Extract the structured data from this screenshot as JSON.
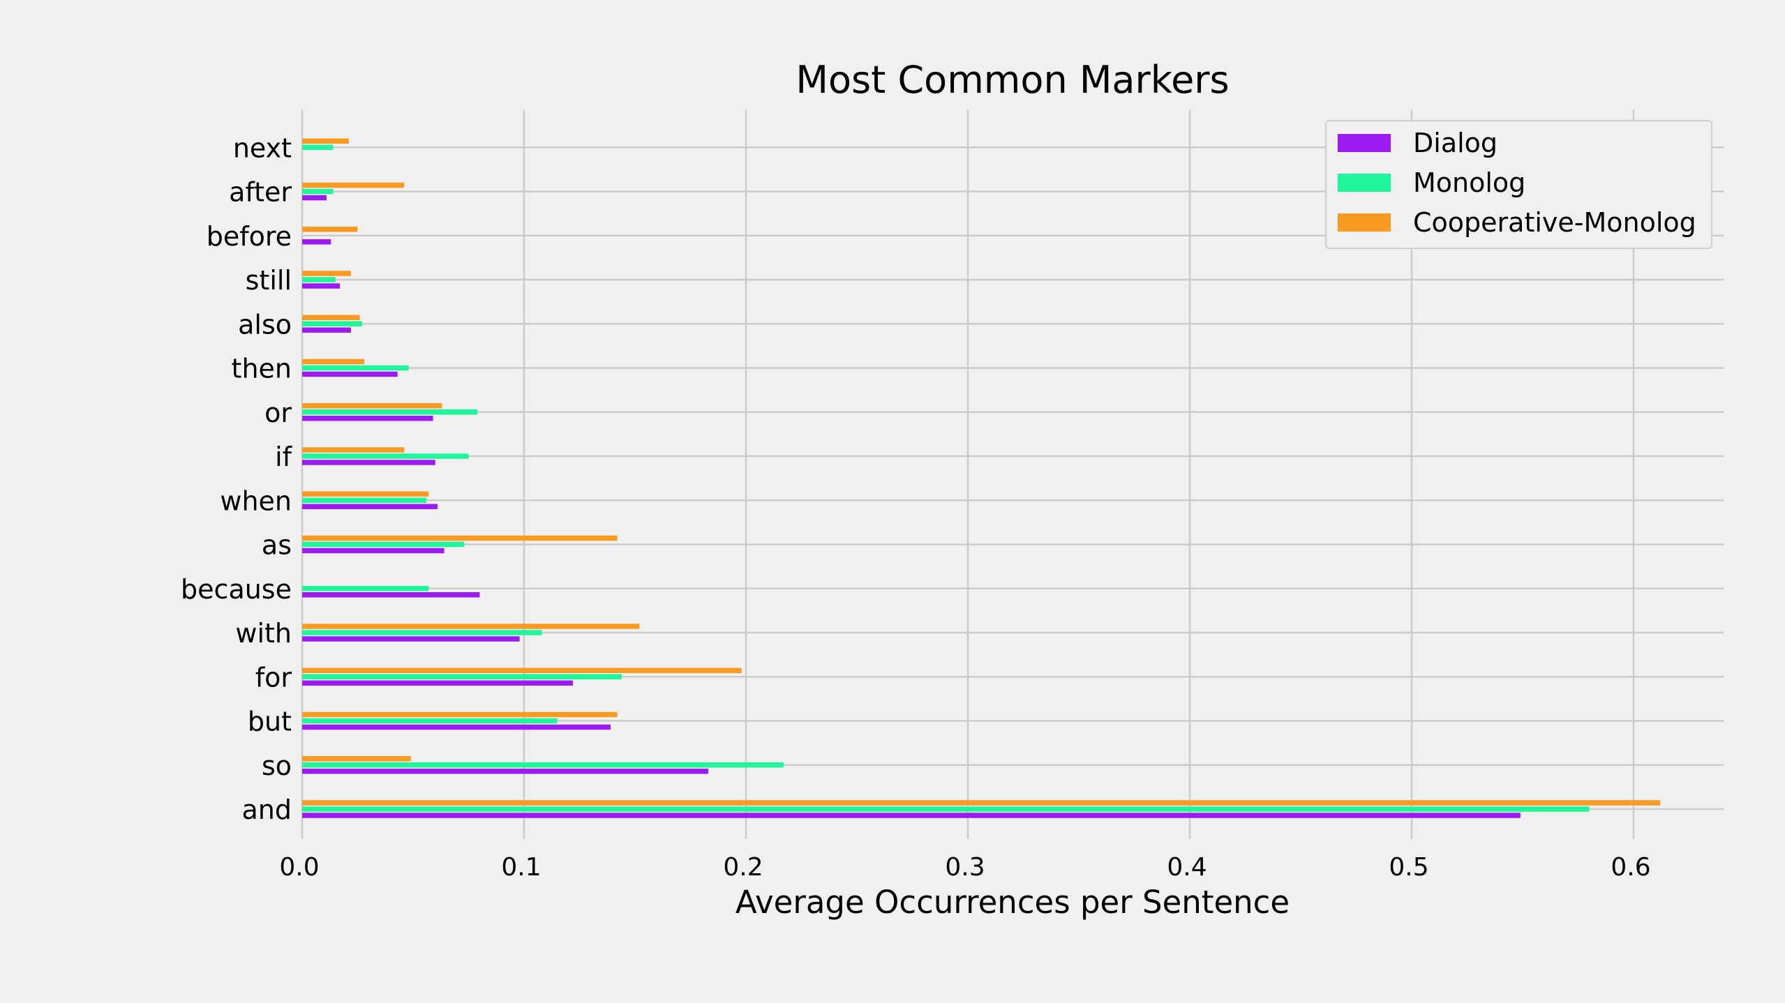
{
  "chart_data": {
    "type": "bar",
    "orientation": "horizontal",
    "title": "Most Common Markers",
    "xlabel": "Average Occurrences per Sentence",
    "ylabel": "",
    "xlim": [
      0.0,
      0.64
    ],
    "xticks": [
      "0.0",
      "0.1",
      "0.2",
      "0.3",
      "0.4",
      "0.5",
      "0.6"
    ],
    "grid": true,
    "legend_position": "top-right",
    "categories": [
      "and",
      "so",
      "but",
      "for",
      "with",
      "because",
      "as",
      "when",
      "if",
      "or",
      "then",
      "also",
      "still",
      "before",
      "after",
      "next"
    ],
    "series": [
      {
        "name": "Dialog",
        "color": "#9b1bf2",
        "values": [
          0.549,
          0.183,
          0.139,
          0.122,
          0.098,
          0.08,
          0.064,
          0.061,
          0.06,
          0.059,
          0.043,
          0.022,
          0.017,
          0.013,
          0.011,
          0.0
        ]
      },
      {
        "name": "Monolog",
        "color": "#1ff59a",
        "values": [
          0.58,
          0.217,
          0.115,
          0.144,
          0.108,
          0.057,
          0.073,
          0.056,
          0.075,
          0.079,
          0.048,
          0.027,
          0.015,
          0.0,
          0.014,
          0.014
        ]
      },
      {
        "name": "Cooperative-Monolog",
        "color": "#f99a22",
        "values": [
          0.612,
          0.049,
          0.142,
          0.198,
          0.152,
          0.0,
          0.142,
          0.057,
          0.046,
          0.063,
          0.028,
          0.026,
          0.022,
          0.025,
          0.046,
          0.021
        ]
      }
    ]
  }
}
